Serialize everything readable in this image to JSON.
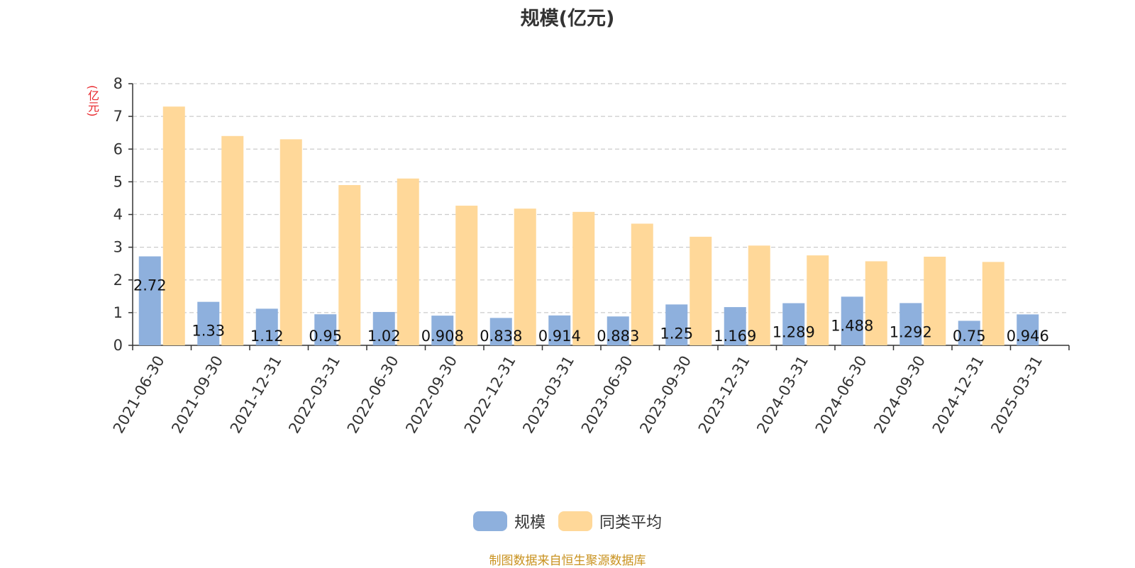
{
  "chart_data": {
    "type": "bar",
    "title": "规模(亿元)",
    "ylabel": "(亿元)",
    "xlabel": "",
    "ylim": [
      0,
      8
    ],
    "yticks": [
      0,
      1,
      2,
      3,
      4,
      5,
      6,
      7,
      8
    ],
    "grid": true,
    "legend_position": "bottom",
    "categories": [
      "2021-06-30",
      "2021-09-30",
      "2021-12-31",
      "2022-03-31",
      "2022-06-30",
      "2022-09-30",
      "2022-12-31",
      "2023-03-31",
      "2023-06-30",
      "2023-09-30",
      "2023-12-31",
      "2024-03-31",
      "2024-06-30",
      "2024-09-30",
      "2024-12-31",
      "2025-03-31"
    ],
    "series": [
      {
        "name": "规模",
        "color": "#8eb0dd",
        "values": [
          2.72,
          1.33,
          1.12,
          0.95,
          1.02,
          0.908,
          0.838,
          0.914,
          0.883,
          1.25,
          1.169,
          1.289,
          1.488,
          1.292,
          0.75,
          0.946
        ],
        "labels": [
          "2.72",
          "1.33",
          "1.12",
          "0.95",
          "1.02",
          "0.908",
          "0.838",
          "0.914",
          "0.883",
          "1.25",
          "1.169",
          "1.289",
          "1.488",
          "1.292",
          "0.75",
          "0.946"
        ]
      },
      {
        "name": "同类平均",
        "color": "#ffd899",
        "values": [
          7.3,
          6.4,
          6.3,
          4.9,
          5.1,
          4.27,
          4.18,
          4.08,
          3.72,
          3.32,
          3.05,
          2.75,
          2.57,
          2.71,
          2.55,
          null
        ]
      }
    ]
  },
  "source": "制图数据来自恒生聚源数据库"
}
